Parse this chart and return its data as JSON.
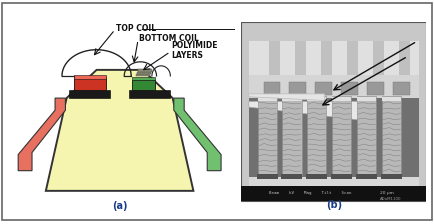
{
  "fig_width": 4.35,
  "fig_height": 2.24,
  "dpi": 100,
  "bg_color": "#ffffff",
  "border_color": "#666666",
  "panel_a_label": "(a)",
  "panel_b_label": "(b)",
  "label_fontsize": 7,
  "label_color": "#1a3a8a",
  "annotation_fontsize": 5.5,
  "top_coil_label": "TOP COIL",
  "bottom_coil_label": "BOTTOM COIL",
  "polyimide_label": "POLYIMIDE\nLAYERS",
  "package_fill": "#f5f5b0",
  "package_edge": "#333333",
  "left_lead_color": "#e87060",
  "right_lead_color": "#70c070",
  "top_coil_color": "#d04030",
  "bottom_coil_color": "#50a050",
  "black_base_color": "#1a1a1a",
  "wire_color": "#222222"
}
